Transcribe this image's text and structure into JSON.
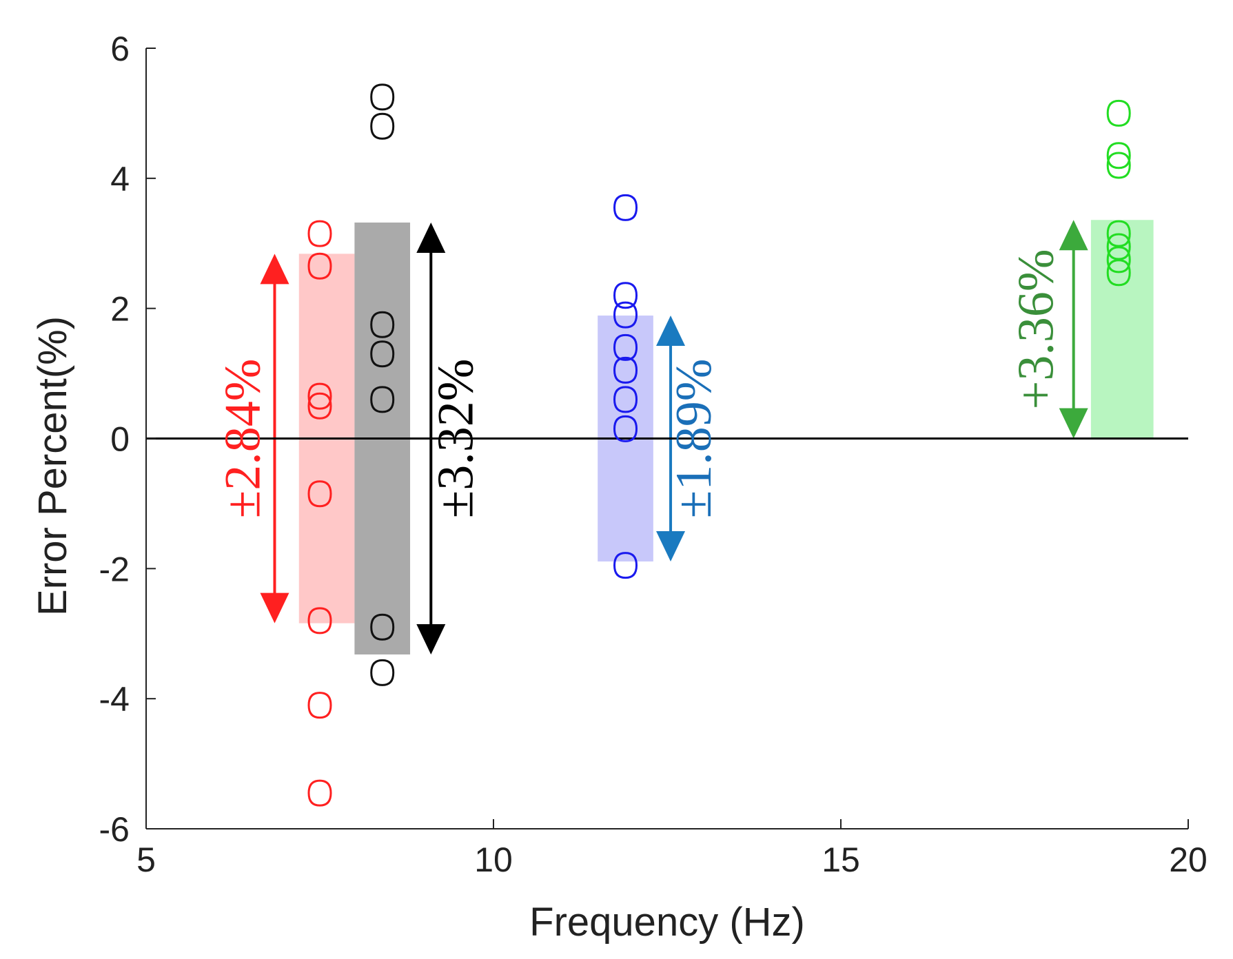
{
  "chart_data": {
    "type": "scatter",
    "xlabel": "Frequency (Hz)",
    "ylabel": "Error Percent(%)",
    "xlim": [
      5,
      20
    ],
    "ylim": [
      -6,
      6
    ],
    "xticks": [
      5,
      10,
      15,
      20
    ],
    "yticks": [
      -6,
      -4,
      -2,
      0,
      2,
      4,
      6
    ],
    "zero_line": true,
    "grid": false,
    "marker": "diamond-open",
    "series": [
      {
        "color": "#ff2020",
        "x": 7.5,
        "values": [
          3.15,
          2.65,
          0.65,
          0.5,
          -0.85,
          -2.8,
          -4.1,
          -5.45
        ],
        "band": {
          "x_from": 7.2,
          "x_to": 8.0,
          "low": -2.84,
          "high": 2.84,
          "color": "#ffc8c8"
        },
        "range_arrow": {
          "x": 6.85,
          "low": -2.84,
          "high": 2.84,
          "color": "#ff2020"
        },
        "annotation": {
          "text": "±2.84%",
          "color": "#ff2020"
        }
      },
      {
        "color": "#111111",
        "x": 8.4,
        "values": [
          5.25,
          4.8,
          1.75,
          1.3,
          0.6,
          -2.9,
          -3.6
        ],
        "band": {
          "x_from": 8.0,
          "x_to": 8.8,
          "low": -3.32,
          "high": 3.32,
          "color": "#aaaaaa"
        },
        "range_arrow": {
          "x": 9.1,
          "low": -3.32,
          "high": 3.32,
          "color": "#000000"
        },
        "annotation": {
          "text": "±3.32%",
          "color": "#000000"
        }
      },
      {
        "color": "#1a1aee",
        "x": 11.9,
        "values": [
          3.55,
          2.2,
          1.9,
          1.4,
          1.05,
          0.6,
          0.15,
          -1.95
        ],
        "band": {
          "x_from": 11.5,
          "x_to": 12.3,
          "low": -1.89,
          "high": 1.89,
          "color": "#c8c8fa"
        },
        "range_arrow": {
          "x": 12.55,
          "low": -1.89,
          "high": 1.89,
          "color": "#1a7ac0"
        },
        "annotation": {
          "text": "±1.89%",
          "color": "#1a6fb8"
        }
      },
      {
        "color": "#22dd22",
        "x": 19.0,
        "values": [
          5.0,
          4.35,
          4.2,
          3.15,
          2.95,
          2.75,
          2.55
        ],
        "band": {
          "x_from": 18.6,
          "x_to": 19.5,
          "low": 0,
          "high": 3.36,
          "color": "#b8f5c0"
        },
        "range_arrow": {
          "x": 18.35,
          "low": 0,
          "high": 3.36,
          "color": "#3caa3c"
        },
        "annotation": {
          "text": "+3.36%",
          "color": "#3a8f3a"
        }
      }
    ]
  }
}
